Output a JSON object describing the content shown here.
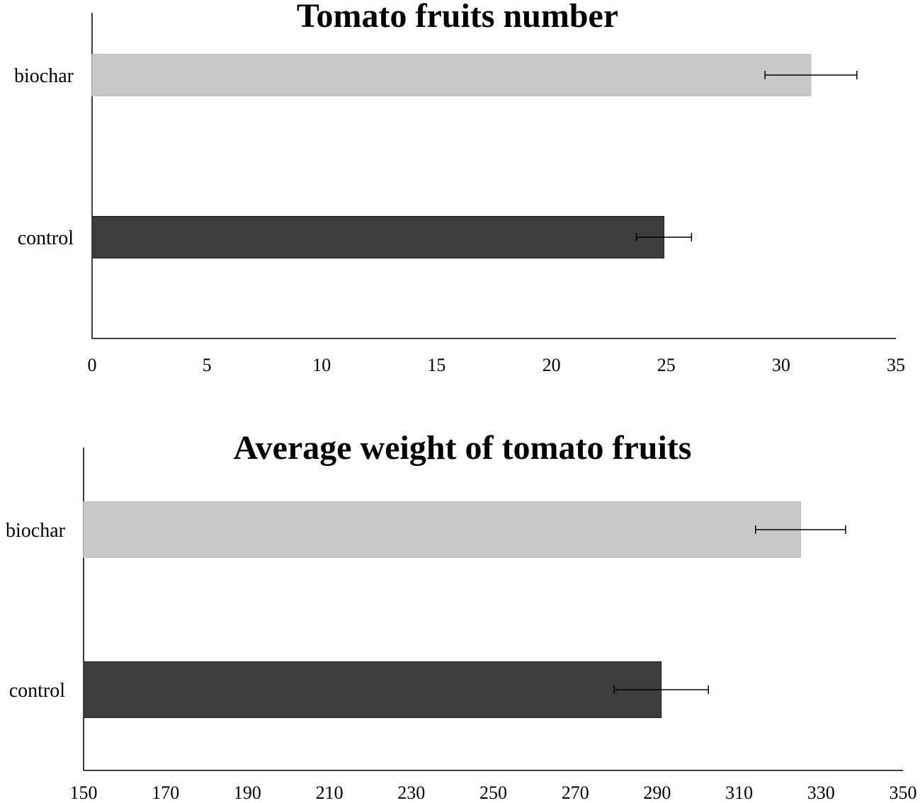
{
  "chart_data": [
    {
      "type": "bar",
      "orientation": "horizontal",
      "title": "Tomato fruits number",
      "xlabel": "",
      "ylabel": "",
      "categories": [
        "biochar",
        "control"
      ],
      "values": [
        31.3,
        24.9
      ],
      "errors": [
        2.0,
        1.2
      ],
      "colors": [
        "#c8c8c8",
        "#3c3c3c"
      ],
      "xlim": [
        0,
        35
      ],
      "xticks": [
        0,
        5,
        10,
        15,
        20,
        25,
        30,
        35
      ],
      "grid": false,
      "legend": "none"
    },
    {
      "type": "bar",
      "orientation": "horizontal",
      "title": "Average weight of tomato fruits",
      "xlabel": "",
      "ylabel": "",
      "categories": [
        "biochar",
        "control"
      ],
      "values": [
        325,
        291
      ],
      "errors": [
        11,
        11.5
      ],
      "colors": [
        "#c8c8c8",
        "#3c3c3c"
      ],
      "xlim": [
        150,
        350
      ],
      "xticks": [
        150,
        170,
        190,
        210,
        230,
        250,
        270,
        290,
        310,
        330,
        350
      ],
      "grid": false,
      "legend": "none"
    }
  ]
}
